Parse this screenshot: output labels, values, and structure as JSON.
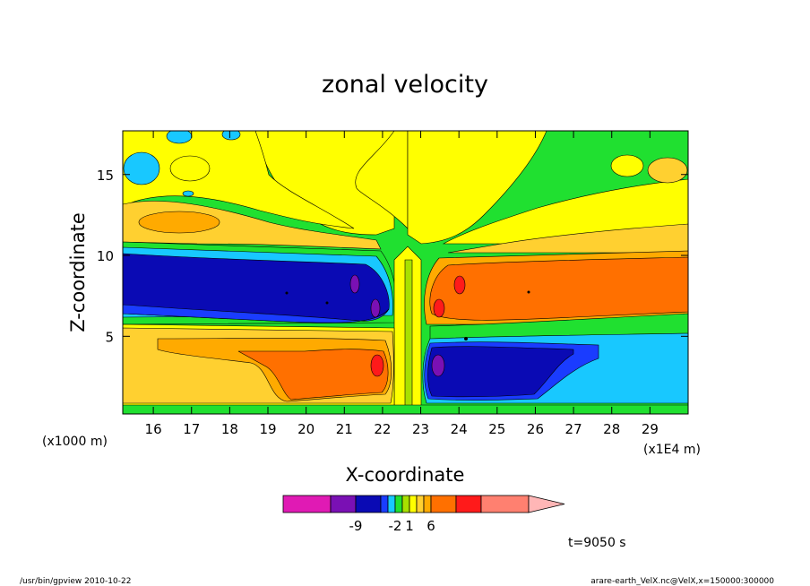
{
  "chart_data": {
    "type": "heatmap",
    "title": "zonal velocity",
    "xlabel": "X-coordinate",
    "ylabel": "Z-coordinate",
    "x_unit_left": "(x1000 m)",
    "x_unit_right": "(x1E4 m)",
    "x_ticks": [
      "16",
      "17",
      "18",
      "19",
      "20",
      "21",
      "22",
      "23",
      "24",
      "25",
      "26",
      "27",
      "28",
      "29"
    ],
    "y_ticks": [
      "5",
      "10",
      "15"
    ],
    "xlim": [
      15.2,
      30.0
    ],
    "ylim": [
      0.2,
      17.7
    ],
    "colorbar": {
      "colors": [
        "#e01ab4",
        "#7a10b4",
        "#0a0ab4",
        "#1a3cff",
        "#18c8ff",
        "#20e030",
        "#a8e000",
        "#ffff00",
        "#ffd030",
        "#ffaa00",
        "#ff7000",
        "#ff1a1a",
        "#ff8070",
        "#ffb6b6"
      ],
      "labels": [
        "-9",
        "-2",
        "1",
        "6"
      ],
      "label_positions": [
        1,
        4,
        6,
        9
      ]
    },
    "time_label": "t=9050 s",
    "footer_left": "/usr/bin/gpview   2010-10-22",
    "footer_right": "arare-earth_VelX.nc@VelX,x=150000:300000"
  }
}
